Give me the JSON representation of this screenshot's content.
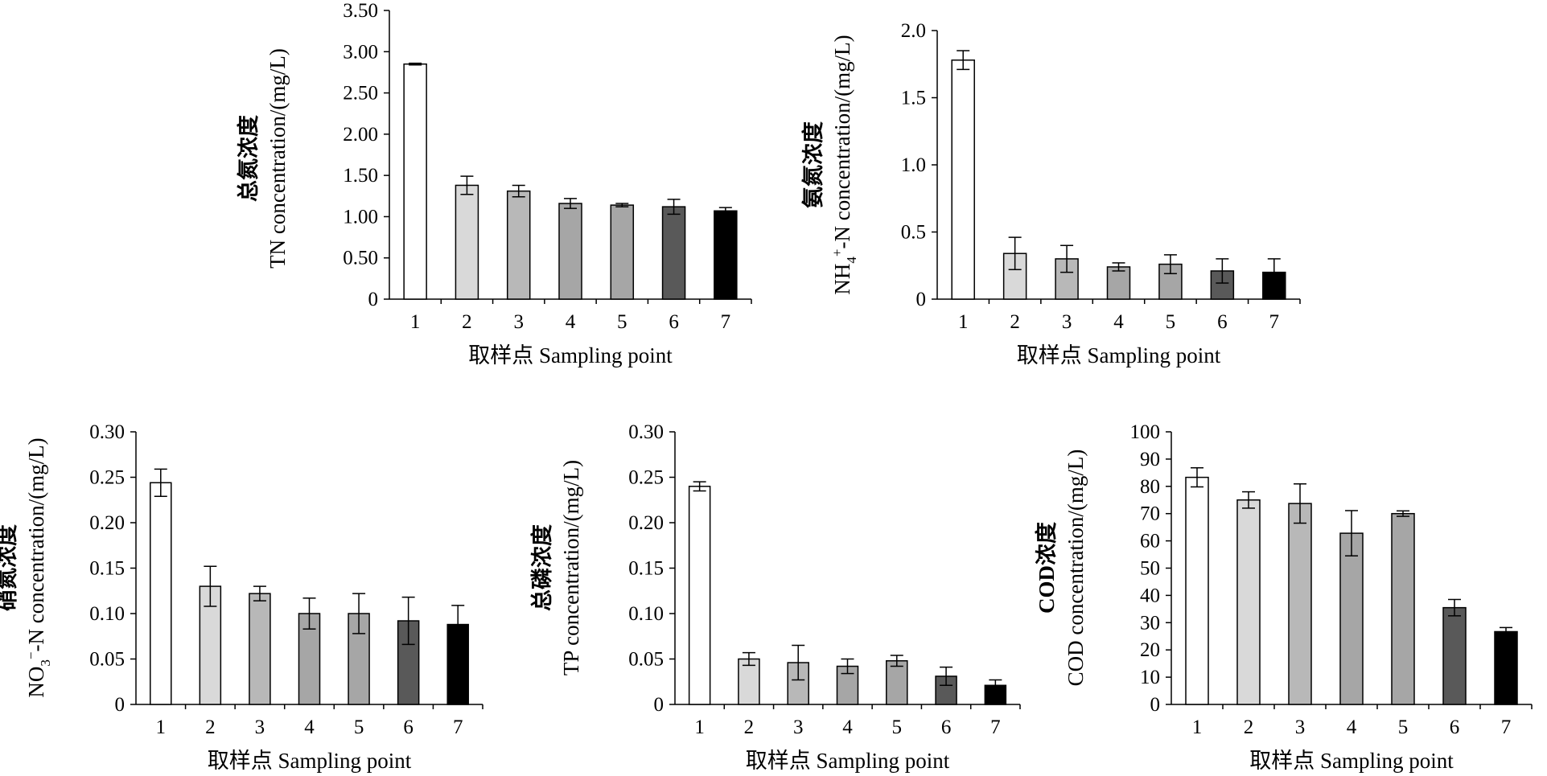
{
  "chart_data": [
    {
      "type": "bar",
      "categories": [
        "1",
        "2",
        "3",
        "4",
        "5",
        "6",
        "7"
      ],
      "values": [
        2.85,
        1.38,
        1.31,
        1.16,
        1.14,
        1.12,
        1.07
      ],
      "errors": [
        0.01,
        0.11,
        0.07,
        0.06,
        0.02,
        0.09,
        0.04
      ],
      "colors": [
        "#ffffff",
        "#d9d9d9",
        "#b8b8b8",
        "#a6a6a6",
        "#a6a6a6",
        "#595959",
        "#000000"
      ],
      "ylim": [
        0,
        3.5
      ],
      "yticks": [
        "0",
        "0.50",
        "1.00",
        "1.50",
        "2.00",
        "2.50",
        "3.00",
        "3.50"
      ],
      "xlabel": "取样点 Sampling point",
      "ylabel_line1": "总氮浓度",
      "ylabel_line2": "TN concentration/(mg/L)"
    },
    {
      "type": "bar",
      "categories": [
        "1",
        "2",
        "3",
        "4",
        "5",
        "6",
        "7"
      ],
      "values": [
        1.78,
        0.34,
        0.3,
        0.24,
        0.26,
        0.21,
        0.2
      ],
      "errors": [
        0.07,
        0.12,
        0.1,
        0.03,
        0.07,
        0.09,
        0.1
      ],
      "colors": [
        "#ffffff",
        "#d9d9d9",
        "#b8b8b8",
        "#a6a6a6",
        "#a6a6a6",
        "#595959",
        "#000000"
      ],
      "ylim": [
        0,
        2.0
      ],
      "yticks": [
        "0",
        "0.5",
        "1.0",
        "1.5",
        "2.0"
      ],
      "xlabel": "取样点 Sampling point",
      "ylabel_line1": "氨氮浓度",
      "ylabel_line2": "NH4+-N concentration/(mg/L)"
    },
    {
      "type": "bar",
      "categories": [
        "1",
        "2",
        "3",
        "4",
        "5",
        "6",
        "7"
      ],
      "values": [
        0.244,
        0.13,
        0.122,
        0.1,
        0.1,
        0.092,
        0.088
      ],
      "errors": [
        0.015,
        0.022,
        0.008,
        0.017,
        0.022,
        0.026,
        0.021
      ],
      "colors": [
        "#ffffff",
        "#d9d9d9",
        "#b8b8b8",
        "#a6a6a6",
        "#a6a6a6",
        "#595959",
        "#000000"
      ],
      "ylim": [
        0,
        0.3
      ],
      "yticks": [
        "0",
        "0.05",
        "0.10",
        "0.15",
        "0.20",
        "0.25",
        "0.30"
      ],
      "xlabel": "取样点 Sampling point",
      "ylabel_line1": "硝氮浓度",
      "ylabel_line2": "NO3−-N concentration/(mg/L)"
    },
    {
      "type": "bar",
      "categories": [
        "1",
        "2",
        "3",
        "4",
        "5",
        "6",
        "7"
      ],
      "values": [
        0.24,
        0.05,
        0.046,
        0.042,
        0.048,
        0.031,
        0.021
      ],
      "errors": [
        0.005,
        0.007,
        0.019,
        0.008,
        0.006,
        0.01,
        0.006
      ],
      "colors": [
        "#ffffff",
        "#d9d9d9",
        "#b8b8b8",
        "#a6a6a6",
        "#a6a6a6",
        "#595959",
        "#000000"
      ],
      "ylim": [
        0,
        0.3
      ],
      "yticks": [
        "0",
        "0.05",
        "0.10",
        "0.15",
        "0.20",
        "0.25",
        "0.30"
      ],
      "xlabel": "取样点 Sampling point",
      "ylabel_line1": "总磷浓度",
      "ylabel_line2": "TP concentration/(mg/L)"
    },
    {
      "type": "bar",
      "categories": [
        "1",
        "2",
        "3",
        "4",
        "5",
        "6",
        "7"
      ],
      "values": [
        83.3,
        75.0,
        73.7,
        62.8,
        70.0,
        35.5,
        26.7
      ],
      "errors": [
        3.5,
        3.0,
        7.2,
        8.3,
        1.0,
        3.0,
        1.5
      ],
      "colors": [
        "#ffffff",
        "#d9d9d9",
        "#b8b8b8",
        "#a6a6a6",
        "#a6a6a6",
        "#595959",
        "#000000"
      ],
      "ylim": [
        0,
        100
      ],
      "yticks": [
        "0",
        "10",
        "20",
        "30",
        "40",
        "50",
        "60",
        "70",
        "80",
        "90",
        "100"
      ],
      "xlabel": "取样点 Sampling point",
      "ylabel_line1": "COD浓度",
      "ylabel_line2": "COD concentration/(mg/L)"
    }
  ]
}
